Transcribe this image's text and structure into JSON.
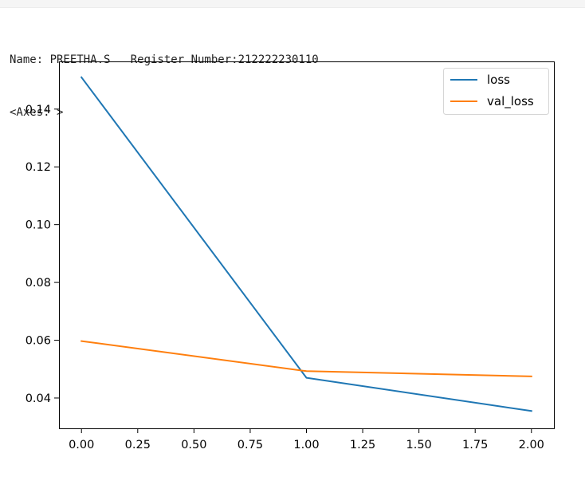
{
  "output": {
    "stdout_line": "Name: PREETHA.S   Register Number:212222230110",
    "repr_line": "<Axes: >"
  },
  "chart_data": {
    "type": "line",
    "x": [
      0,
      1,
      2
    ],
    "series": [
      {
        "name": "loss",
        "values": [
          0.151,
          0.047,
          0.0355
        ],
        "color": "#1f77b4"
      },
      {
        "name": "val_loss",
        "values": [
          0.0597,
          0.0493,
          0.0475
        ],
        "color": "#ff7f0e"
      }
    ],
    "xlim": [
      -0.1,
      2.1
    ],
    "ylim": [
      0.0295,
      0.1565
    ],
    "xticks": [
      0,
      0.25,
      0.5,
      0.75,
      1,
      1.25,
      1.5,
      1.75,
      2
    ],
    "xtick_labels": [
      "0.00",
      "0.25",
      "0.50",
      "0.75",
      "1.00",
      "1.25",
      "1.50",
      "1.75",
      "2.00"
    ],
    "yticks": [
      0.04,
      0.06,
      0.08,
      0.1,
      0.12,
      0.14
    ],
    "ytick_labels": [
      "0.04",
      "0.06",
      "0.08",
      "0.10",
      "0.12",
      "0.14"
    ],
    "grid": false,
    "legend_position": "top-right"
  }
}
